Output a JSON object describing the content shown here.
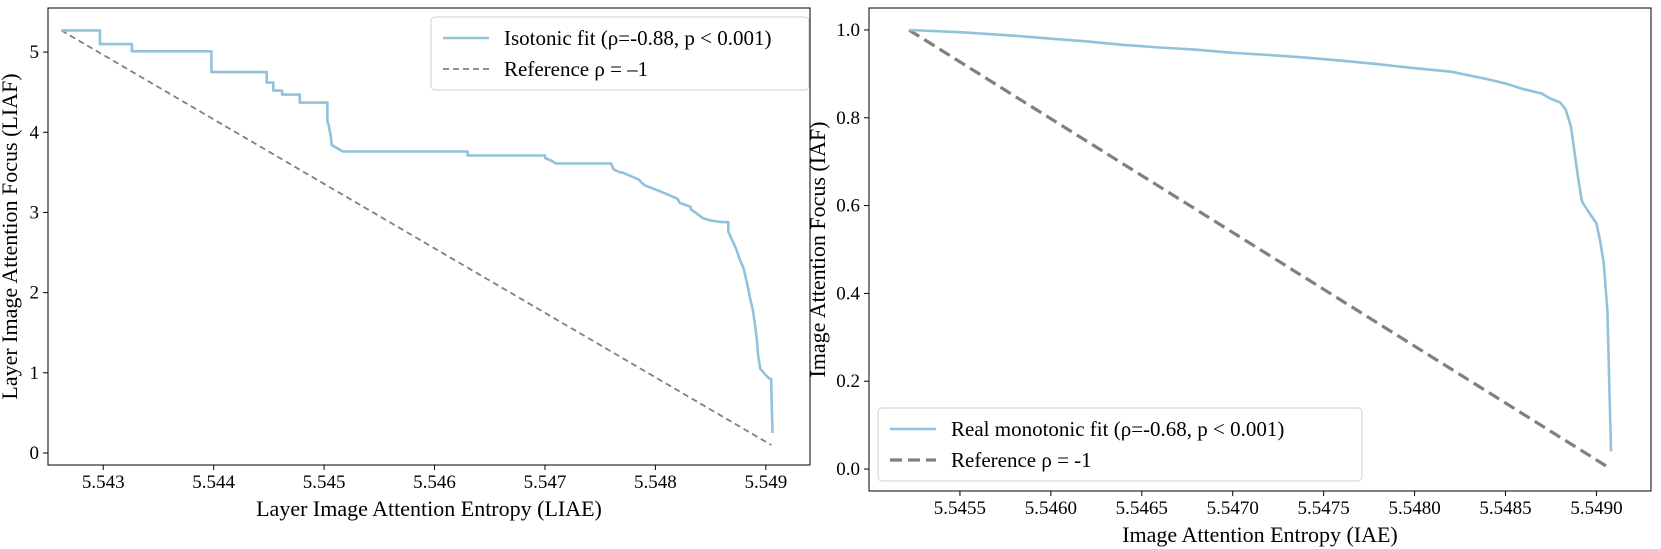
{
  "chart_data": [
    {
      "type": "line",
      "title": "",
      "xlabel": "Layer Image Attention Entropy (LIAE)",
      "ylabel": "Layer Image Attention Focus (LIAF)",
      "xlim": [
        5.5425,
        5.5494
      ],
      "ylim": [
        -0.15,
        5.55
      ],
      "xticks": [
        "5.543",
        "5.544",
        "5.545",
        "5.546",
        "5.547",
        "5.548",
        "5.549"
      ],
      "yticks": [
        "0",
        "1",
        "2",
        "3",
        "4",
        "5"
      ],
      "grid": false,
      "legend_position": "top-right",
      "series": [
        {
          "name": "Isotonic fit (ρ=-0.88, p < 0.001)",
          "style": "solid",
          "color": "#92c2db",
          "x": [
            5.54262,
            5.54297,
            5.54297,
            5.54326,
            5.54326,
            5.54398,
            5.54398,
            5.54448,
            5.54448,
            5.54454,
            5.54454,
            5.54462,
            5.54462,
            5.54478,
            5.54478,
            5.54503,
            5.54503,
            5.54504,
            5.54506,
            5.54507,
            5.54507,
            5.54517,
            5.54517,
            5.5463,
            5.5463,
            5.547,
            5.547,
            5.54705,
            5.5471,
            5.5471,
            5.5476,
            5.54762,
            5.54768,
            5.5477,
            5.54785,
            5.5479,
            5.5479,
            5.54805,
            5.54805,
            5.5482,
            5.54822,
            5.54832,
            5.54832,
            5.5484,
            5.54843,
            5.5485,
            5.5486,
            5.54866,
            5.54866,
            5.5487,
            5.54873,
            5.54876,
            5.5488,
            5.54882,
            5.54884,
            5.54886,
            5.54888,
            5.5489,
            5.54892,
            5.54893,
            5.54895,
            5.549,
            5.54903,
            5.54905,
            5.54905,
            5.54906
          ],
          "y": [
            5.27,
            5.27,
            5.1,
            5.1,
            5.01,
            5.01,
            4.75,
            4.75,
            4.62,
            4.62,
            4.52,
            4.52,
            4.47,
            4.47,
            4.37,
            4.37,
            4.13,
            4.1,
            3.96,
            3.84,
            3.84,
            3.76,
            3.76,
            3.76,
            3.71,
            3.71,
            3.68,
            3.65,
            3.61,
            3.61,
            3.61,
            3.54,
            3.5,
            3.5,
            3.41,
            3.34,
            3.34,
            3.26,
            3.26,
            3.17,
            3.12,
            3.07,
            3.04,
            2.96,
            2.93,
            2.9,
            2.88,
            2.88,
            2.76,
            2.64,
            2.55,
            2.43,
            2.3,
            2.18,
            2.05,
            1.91,
            1.8,
            1.62,
            1.4,
            1.22,
            1.05,
            0.97,
            0.93,
            0.92,
            0.8,
            0.25
          ]
        },
        {
          "name": "Reference ρ = –1",
          "style": "dashed",
          "color": "#808080",
          "x": [
            5.54262,
            5.54905
          ],
          "y": [
            5.27,
            0.1
          ]
        }
      ]
    },
    {
      "type": "line",
      "title": "",
      "xlabel": "Image Attention Entropy (IAE)",
      "ylabel": "Image Attention Focus (IAF)",
      "xlim": [
        5.545,
        5.5493
      ],
      "ylim": [
        -0.05,
        1.05
      ],
      "xticks": [
        "5.5455",
        "5.5460",
        "5.5465",
        "5.5470",
        "5.5475",
        "5.5480",
        "5.5485",
        "5.5490"
      ],
      "yticks": [
        "0.0",
        "0.2",
        "0.4",
        "0.6",
        "0.8",
        "1.0"
      ],
      "grid": false,
      "legend_position": "bottom-left",
      "series": [
        {
          "name": "Real monotonic fit (ρ=-0.68, p < 0.001)",
          "style": "solid",
          "color": "#92c2db",
          "x": [
            5.54522,
            5.5455,
            5.5458,
            5.546,
            5.5462,
            5.5464,
            5.5466,
            5.5468,
            5.547,
            5.5472,
            5.5474,
            5.5476,
            5.5478,
            5.548,
            5.5482,
            5.5484,
            5.5485,
            5.5486,
            5.5487,
            5.54875,
            5.5488,
            5.54883,
            5.54886,
            5.54888,
            5.5489,
            5.54892,
            5.54895,
            5.549,
            5.54902,
            5.54904,
            5.54906,
            5.54907,
            5.54908
          ],
          "y": [
            1.0,
            0.995,
            0.987,
            0.98,
            0.974,
            0.966,
            0.96,
            0.955,
            0.948,
            0.943,
            0.937,
            0.93,
            0.922,
            0.913,
            0.905,
            0.888,
            0.878,
            0.865,
            0.855,
            0.843,
            0.835,
            0.82,
            0.78,
            0.72,
            0.66,
            0.61,
            0.59,
            0.56,
            0.52,
            0.47,
            0.36,
            0.2,
            0.04
          ]
        },
        {
          "name": "Reference ρ = -1",
          "style": "dashed",
          "color": "#808080",
          "x": [
            5.54522,
            5.54908
          ],
          "y": [
            1.0,
            0.0
          ]
        }
      ]
    }
  ]
}
